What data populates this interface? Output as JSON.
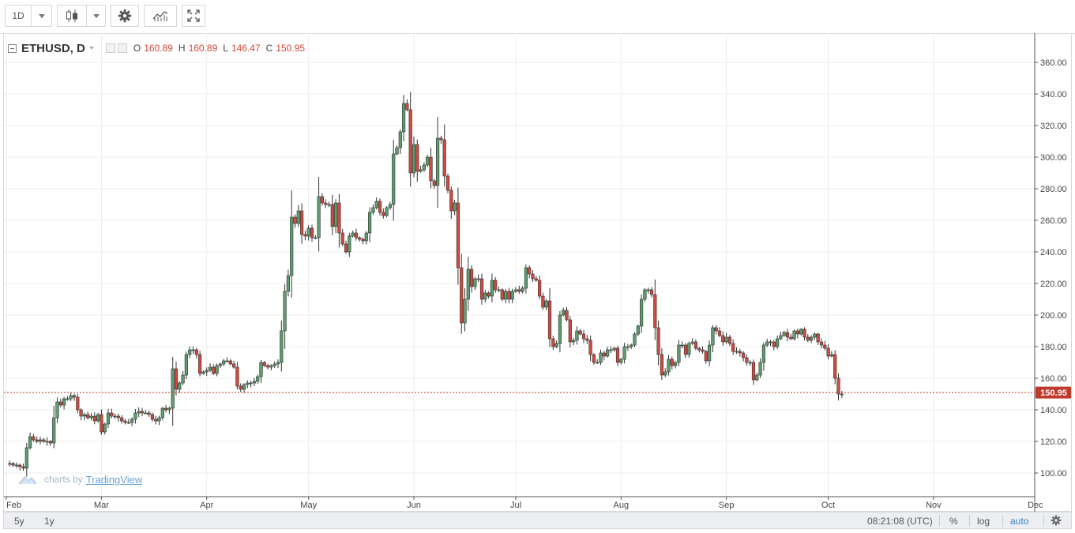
{
  "toolbar": {
    "interval": "1D"
  },
  "legend": {
    "symbol": "ETHUSD, D",
    "o_label": "O",
    "open": "160.89",
    "h_label": "H",
    "high": "160.89",
    "l_label": "L",
    "low": "146.47",
    "c_label": "C",
    "close": "150.95"
  },
  "price_tag": "150.95",
  "watermark": {
    "prefix": "charts by",
    "brand": "TradingView"
  },
  "bottom": {
    "range_5y": "5y",
    "range_1y": "1y",
    "time": "08:21:08 (UTC)",
    "percent": "%",
    "log": "log",
    "auto": "auto"
  },
  "colors": {
    "up": "#5c9e6e",
    "down": "#cf4a41",
    "accent": "#2f85c7",
    "price_line": "#c0392b"
  },
  "chart_data": {
    "type": "candlestick",
    "ylim": [
      90,
      370
    ],
    "y_ticks": [
      "360.00",
      "340.00",
      "320.00",
      "300.00",
      "280.00",
      "260.00",
      "240.00",
      "220.00",
      "200.00",
      "180.00",
      "160.00",
      "140.00",
      "120.00",
      "100.00"
    ],
    "x_ticks": [
      {
        "label": "Feb",
        "day": 0
      },
      {
        "label": "Mar",
        "day": 28
      },
      {
        "label": "Apr",
        "day": 59
      },
      {
        "label": "May",
        "day": 89
      },
      {
        "label": "Jun",
        "day": 120
      },
      {
        "label": "Jul",
        "day": 150
      },
      {
        "label": "Aug",
        "day": 181
      },
      {
        "label": "Sep",
        "day": 212
      },
      {
        "label": "Oct",
        "day": 242
      },
      {
        "label": "Nov",
        "day": 273
      },
      {
        "label": "Dec",
        "day": 303
      }
    ],
    "last_price": 150.95,
    "closes": [
      106,
      106,
      105,
      105,
      104,
      103,
      116,
      123,
      121,
      120,
      121,
      120,
      120,
      119,
      135,
      145,
      143,
      147,
      147,
      149,
      148,
      140,
      136,
      137,
      135,
      136,
      133,
      137,
      126,
      131,
      138,
      136,
      136,
      135,
      133,
      132,
      132,
      134,
      138,
      139,
      138,
      138,
      137,
      134,
      133,
      135,
      141,
      140,
      141,
      166,
      153,
      157,
      162,
      175,
      178,
      178,
      175,
      163,
      164,
      165,
      167,
      163,
      168,
      169,
      171,
      171,
      169,
      167,
      155,
      153,
      156,
      157,
      157,
      158,
      161,
      170,
      168,
      167,
      168,
      169,
      170,
      190,
      215,
      225,
      262,
      258,
      266,
      251,
      250,
      255,
      249,
      249,
      275,
      271,
      270,
      270,
      256,
      271,
      252,
      245,
      240,
      250,
      252,
      249,
      248,
      247,
      252,
      265,
      268,
      272,
      265,
      263,
      268,
      270,
      302,
      306,
      316,
      334,
      330,
      290,
      308,
      291,
      292,
      295,
      300,
      285,
      282,
      312,
      311,
      288,
      279,
      266,
      271,
      230,
      195,
      210,
      229,
      218,
      223,
      223,
      210,
      214,
      212,
      222,
      216,
      216,
      210,
      215,
      210,
      215,
      216,
      215,
      217,
      230,
      226,
      223,
      222,
      212,
      205,
      209,
      185,
      180,
      182,
      200,
      203,
      197,
      183,
      184,
      190,
      188,
      185,
      184,
      175,
      170,
      170,
      176,
      174,
      178,
      178,
      179,
      170,
      172,
      180,
      180,
      181,
      188,
      193,
      210,
      216,
      216,
      213,
      192,
      175,
      162,
      164,
      172,
      168,
      170,
      181,
      181,
      175,
      182,
      183,
      179,
      178,
      177,
      171,
      181,
      192,
      190,
      187,
      183,
      186,
      182,
      177,
      177,
      176,
      173,
      170,
      170,
      159,
      162,
      170,
      181,
      183,
      183,
      180,
      185,
      187,
      189,
      186,
      185,
      190,
      188,
      191,
      186,
      184,
      186,
      188,
      183,
      181,
      179,
      174,
      175,
      160,
      150,
      150
    ]
  }
}
